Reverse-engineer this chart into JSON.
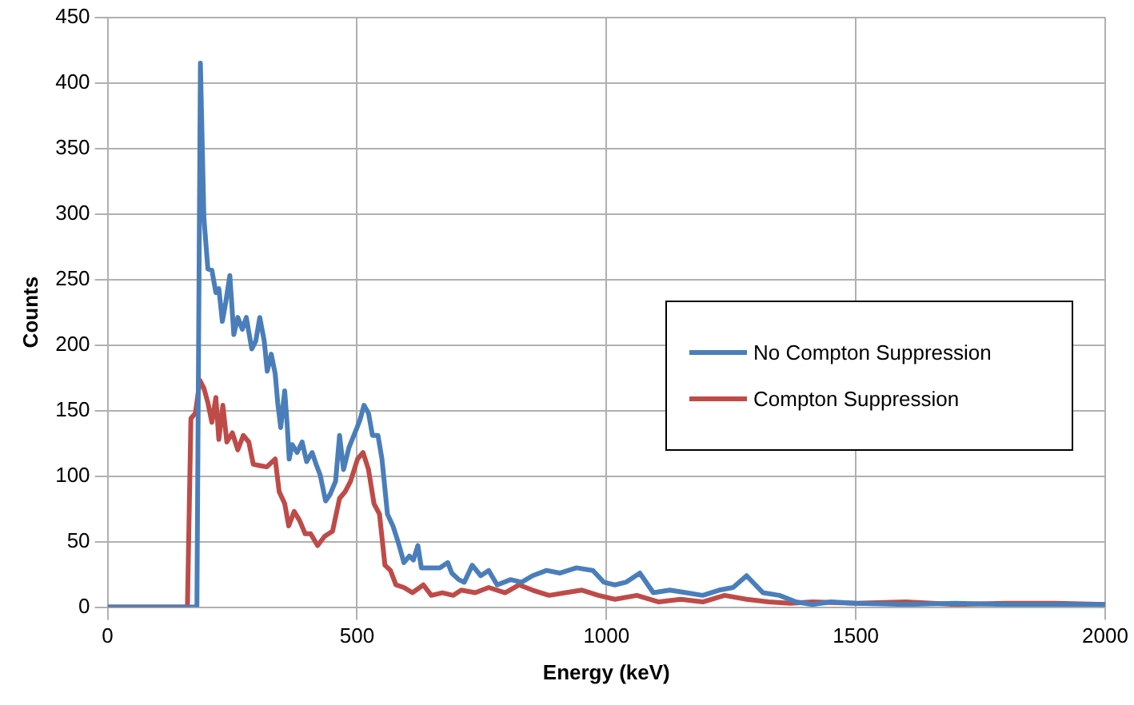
{
  "chart_data": {
    "type": "line",
    "xlabel": "Energy (keV)",
    "ylabel": "Counts",
    "xlim": [
      0,
      2000
    ],
    "xticks": [
      0,
      500,
      1000,
      1500,
      2000
    ],
    "ylim": [
      0,
      450
    ],
    "yticks": [
      0,
      50,
      100,
      150,
      200,
      250,
      300,
      350,
      400,
      450
    ],
    "grid": true,
    "legend": "right",
    "marker": "none",
    "line_style": "solid",
    "series": [
      {
        "name": "No Compton Suppression",
        "color": "#4a7ebb",
        "x": [
          0,
          100,
          170,
          179,
          186,
          193,
          201,
          209,
          217,
          223,
          230,
          237,
          245,
          253,
          261,
          270,
          278,
          289,
          297,
          305,
          314,
          320,
          328,
          336,
          341,
          347,
          355,
          360,
          364,
          370,
          380,
          390,
          399,
          410,
          418,
          426,
          437,
          446,
          457,
          465,
          473,
          484,
          498,
          506,
          514,
          523,
          531,
          542,
          550,
          561,
          572,
          583,
          594,
          605,
          613,
          622,
          629,
          644,
          666,
          682,
          690,
          704,
          715,
          731,
          748,
          764,
          781,
          808,
          830,
          852,
          880,
          907,
          940,
          973,
          995,
          1017,
          1039,
          1067,
          1094,
          1127,
          1160,
          1193,
          1226,
          1254,
          1281,
          1314,
          1347,
          1380,
          1413,
          1450,
          1500,
          1600,
          1700,
          1800,
          1900,
          2000
        ],
        "values": [
          0,
          0,
          0,
          0,
          415,
          297,
          258,
          257,
          240,
          243,
          218,
          233,
          253,
          208,
          221,
          212,
          221,
          197,
          203,
          221,
          203,
          180,
          193,
          178,
          156,
          137,
          165,
          139,
          113,
          124,
          118,
          126,
          111,
          118,
          109,
          101,
          81,
          86,
          96,
          131,
          105,
          122,
          135,
          143,
          154,
          148,
          131,
          131,
          113,
          71,
          62,
          49,
          34,
          39,
          36,
          47,
          30,
          30,
          30,
          34,
          26,
          21,
          19,
          32,
          24,
          28,
          17,
          21,
          19,
          24,
          28,
          26,
          30,
          28,
          19,
          17,
          19,
          26,
          11,
          13,
          11,
          9,
          13,
          15,
          24,
          11,
          9,
          4,
          2,
          4,
          3,
          2,
          3,
          2,
          2,
          2
        ]
      },
      {
        "name": "Compton Suppression",
        "color": "#be4b48",
        "x": [
          0,
          80,
          160,
          167,
          176,
          185,
          193,
          201,
          209,
          217,
          223,
          231,
          239,
          250,
          261,
          272,
          283,
          292,
          305,
          319,
          336,
          344,
          355,
          363,
          374,
          385,
          396,
          407,
          421,
          435,
          451,
          465,
          476,
          487,
          501,
          512,
          523,
          534,
          545,
          556,
          567,
          578,
          594,
          611,
          633,
          649,
          671,
          693,
          709,
          737,
          764,
          797,
          825,
          852,
          885,
          918,
          951,
          984,
          1017,
          1061,
          1105,
          1149,
          1193,
          1237,
          1281,
          1325,
          1369,
          1413,
          1500,
          1600,
          1700,
          1800,
          1900,
          2000
        ],
        "values": [
          0,
          0,
          0,
          144,
          148,
          173,
          167,
          156,
          141,
          160,
          128,
          154,
          126,
          133,
          120,
          131,
          126,
          109,
          108,
          107,
          113,
          88,
          79,
          62,
          73,
          66,
          56,
          56,
          47,
          54,
          58,
          83,
          88,
          96,
          113,
          118,
          105,
          79,
          71,
          32,
          28,
          17,
          15,
          11,
          17,
          9,
          11,
          9,
          13,
          11,
          15,
          11,
          17,
          13,
          9,
          11,
          13,
          9,
          6,
          9,
          4,
          6,
          4,
          9,
          6,
          4,
          3,
          4,
          3,
          4,
          2,
          3,
          3,
          2
        ]
      }
    ]
  }
}
